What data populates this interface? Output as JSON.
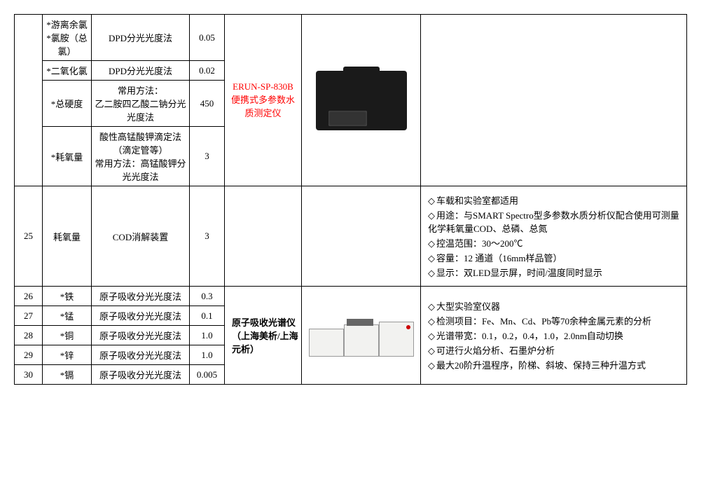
{
  "columns": {
    "num": "",
    "item": "",
    "method": "",
    "limit": "",
    "device": "",
    "img": "",
    "desc": ""
  },
  "device1": {
    "model": "ERUN-SP-830B",
    "name": "便携式多参数水质测定仪",
    "color": "#ff0000"
  },
  "device2": {
    "name": "原子吸收光谱仪",
    "vendor": "（上海美析/上海元析）"
  },
  "rows_top": [
    {
      "num": "",
      "item": "*游离余氯\n*氯胺（总氯）",
      "method": "DPD分光光度法",
      "limit": "0.05"
    },
    {
      "num": "",
      "item": "*二氧化氯",
      "method": "DPD分光光度法",
      "limit": "0.02"
    },
    {
      "num": "",
      "item": "*总硬度",
      "method": "常用方法：\n乙二胺四乙酸二钠分光光度法",
      "limit": "450"
    },
    {
      "num": "",
      "item": "*耗氧量",
      "method": "酸性高锰酸钾滴定法（滴定管等）\n常用方法：高锰酸钾分光光度法",
      "limit": "3"
    }
  ],
  "row25": {
    "num": "25",
    "item": "耗氧量",
    "method": "COD消解装置",
    "limit": "3"
  },
  "desc25": [
    "车载和实验室都适用",
    "用途：与SMART Spectro型多参数水质分析仪配合使用可测量化学耗氧量COD、总磷、总氮",
    "控温范围：30～200℃",
    "容量：12 通道（16mm样品管）",
    "显示：双LED显示屏，时间/温度同时显示"
  ],
  "rows_atomic": [
    {
      "num": "26",
      "item": "*铁",
      "method": "原子吸收分光光度法",
      "limit": "0.3"
    },
    {
      "num": "27",
      "item": "*锰",
      "method": "原子吸收分光光度法",
      "limit": "0.1"
    },
    {
      "num": "28",
      "item": "*铜",
      "method": "原子吸收分光光度法",
      "limit": "1.0"
    },
    {
      "num": "29",
      "item": "*锌",
      "method": "原子吸收分光光度法",
      "limit": "1.0"
    },
    {
      "num": "30",
      "item": "*镉",
      "method": "原子吸收分光光度法",
      "limit": "0.005"
    }
  ],
  "desc_atomic": [
    "大型实验室仪器",
    "检测项目：Fe、Mn、Cd、Pb等70余种金属元素的分析",
    "光谱带宽：0.1，0.2，0.4，1.0，2.0nm自动切换",
    "可进行火焰分析、石墨炉分析",
    "最大20阶升温程序，阶梯、斜坡、保持三种升温方式"
  ]
}
